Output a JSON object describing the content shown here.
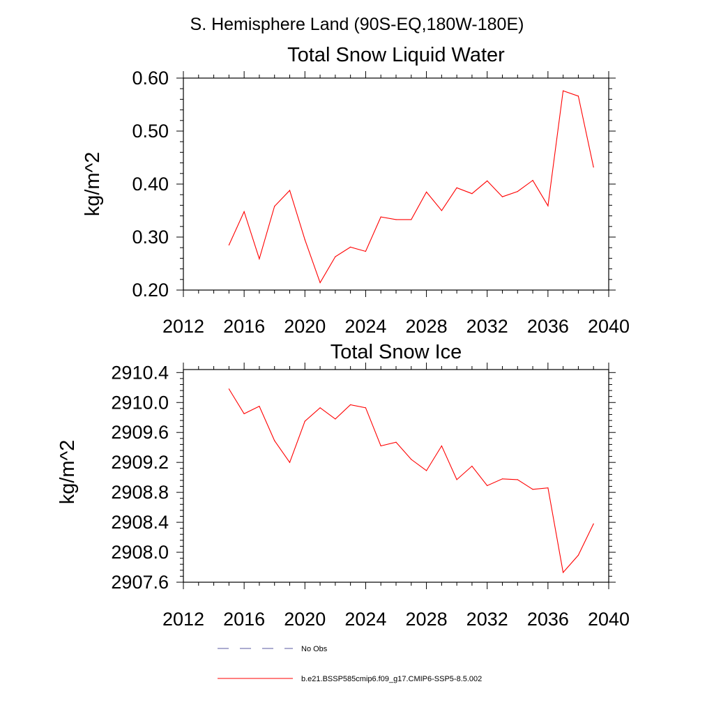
{
  "suptitle": "S. Hemisphere Land (90S-EQ,180W-180E)",
  "colors": {
    "series": "#ff0000",
    "obs": "#5a5aa0",
    "axes": "#000000"
  },
  "chart_data": [
    {
      "type": "line",
      "title": "Total Snow Liquid Water",
      "xlabel": "",
      "ylabel": "kg/m^2",
      "xlim": [
        2012,
        2040
      ],
      "ylim": [
        0.2,
        0.6
      ],
      "xticks": [
        2012,
        2016,
        2020,
        2024,
        2028,
        2032,
        2036,
        2040
      ],
      "xtick_labels": [
        "2012",
        "2016",
        "2020",
        "2024",
        "2028",
        "2032",
        "2036",
        "2040"
      ],
      "yticks": [
        0.2,
        0.3,
        0.4,
        0.5,
        0.6
      ],
      "ytick_labels": [
        "0.20",
        "0.30",
        "0.40",
        "0.50",
        "0.60"
      ],
      "grid": false,
      "series": [
        {
          "name": "b.e21.BSSP585cmip6.f09_g17.CMIP6-SSP5-8.5.002",
          "x": [
            2015,
            2016,
            2017,
            2018,
            2019,
            2020,
            2021,
            2022,
            2023,
            2024,
            2025,
            2026,
            2027,
            2028,
            2029,
            2030,
            2031,
            2032,
            2033,
            2034,
            2035,
            2036,
            2037,
            2038,
            2039
          ],
          "y": [
            0.285,
            0.348,
            0.259,
            0.358,
            0.388,
            0.295,
            0.214,
            0.263,
            0.281,
            0.273,
            0.338,
            0.333,
            0.333,
            0.385,
            0.35,
            0.393,
            0.382,
            0.406,
            0.376,
            0.386,
            0.407,
            0.359,
            0.576,
            0.566,
            0.432
          ]
        }
      ]
    },
    {
      "type": "line",
      "title": "Total Snow Ice",
      "xlabel": "",
      "ylabel": "kg/m^2",
      "xlim": [
        2012,
        2040
      ],
      "ylim": [
        2907.6,
        2910.44
      ],
      "xticks": [
        2012,
        2016,
        2020,
        2024,
        2028,
        2032,
        2036,
        2040
      ],
      "xtick_labels": [
        "2012",
        "2016",
        "2020",
        "2024",
        "2028",
        "2032",
        "2036",
        "2040"
      ],
      "yticks": [
        2907.6,
        2908.0,
        2908.4,
        2908.8,
        2909.2,
        2909.6,
        2910.0,
        2910.4
      ],
      "ytick_labels": [
        "2907.6",
        "2908.0",
        "2908.4",
        "2908.8",
        "2909.2",
        "2909.6",
        "2910.0",
        "2910.4"
      ],
      "grid": false,
      "series": [
        {
          "name": "b.e21.BSSP585cmip6.f09_g17.CMIP6-SSP5-8.5.002",
          "x": [
            2015,
            2016,
            2017,
            2018,
            2019,
            2020,
            2021,
            2022,
            2023,
            2024,
            2025,
            2026,
            2027,
            2028,
            2029,
            2030,
            2031,
            2032,
            2033,
            2034,
            2035,
            2036,
            2037,
            2038,
            2039
          ],
          "y": [
            2910.18,
            2909.85,
            2909.95,
            2909.49,
            2909.2,
            2909.75,
            2909.93,
            2909.78,
            2909.97,
            2909.93,
            2909.42,
            2909.47,
            2909.24,
            2909.09,
            2909.42,
            2908.97,
            2909.15,
            2908.89,
            2908.98,
            2908.97,
            2908.84,
            2908.86,
            2907.73,
            2907.96,
            2908.38
          ]
        }
      ]
    }
  ],
  "legend": {
    "placement": "bottom",
    "entries": [
      {
        "label": "No Obs",
        "style": "dashed",
        "color": "#5a5aa0"
      },
      {
        "label": "b.e21.BSSP585cmip6.f09_g17.CMIP6-SSP5-8.5.002",
        "style": "solid",
        "color": "#ff0000"
      }
    ]
  }
}
